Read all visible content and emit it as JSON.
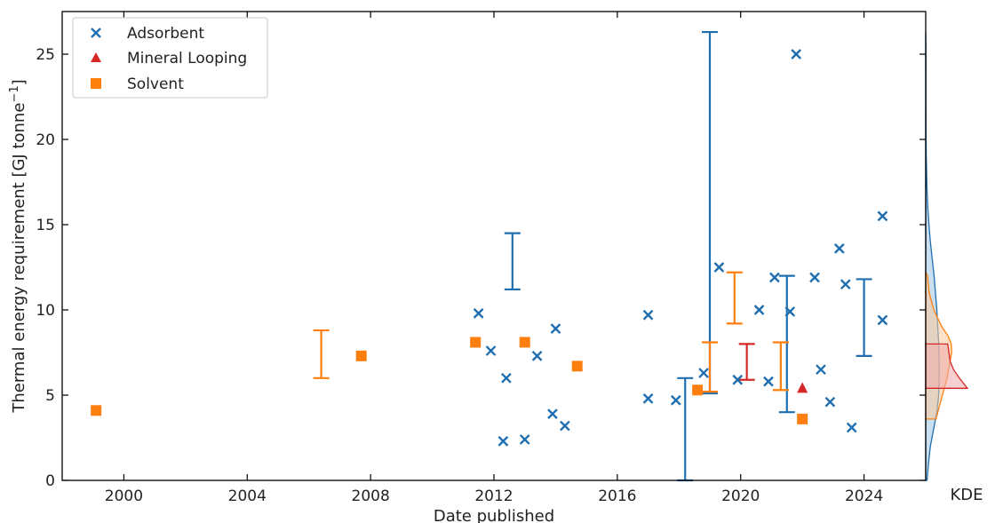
{
  "chart_data": {
    "type": "scatter",
    "xlabel": "Date published",
    "ylabel": "Thermal energy requirement [GJ tonne",
    "ylabel_sup": "−1",
    "ylabel_end": "]",
    "xlim": [
      1998,
      2026
    ],
    "ylim": [
      0,
      27.5
    ],
    "xticks": [
      2000,
      2004,
      2008,
      2012,
      2016,
      2020,
      2024
    ],
    "yticks": [
      0,
      5,
      10,
      15,
      20,
      25
    ],
    "grid": false,
    "legend_position": "top-left",
    "kde_label": "KDE",
    "series": [
      {
        "name": "Adsorbent",
        "marker": "x",
        "color": "#1f6fb0",
        "points": [
          [
            2011.5,
            9.8
          ],
          [
            2011.9,
            7.6
          ],
          [
            2012.3,
            2.3
          ],
          [
            2012.4,
            6.0
          ],
          [
            2013.0,
            2.4
          ],
          [
            2013.4,
            7.3
          ],
          [
            2013.9,
            3.9
          ],
          [
            2014.0,
            8.9
          ],
          [
            2014.3,
            3.2
          ],
          [
            2017.0,
            9.7
          ],
          [
            2017.0,
            4.8
          ],
          [
            2017.9,
            4.7
          ],
          [
            2018.8,
            6.3
          ],
          [
            2019.3,
            12.5
          ],
          [
            2019.9,
            5.9
          ],
          [
            2020.6,
            10.0
          ],
          [
            2020.9,
            5.8
          ],
          [
            2021.1,
            11.9
          ],
          [
            2021.6,
            9.9
          ],
          [
            2021.8,
            25.0
          ],
          [
            2022.4,
            11.9
          ],
          [
            2022.6,
            6.5
          ],
          [
            2022.9,
            4.6
          ],
          [
            2023.2,
            13.6
          ],
          [
            2023.4,
            11.5
          ],
          [
            2023.6,
            3.1
          ],
          [
            2024.6,
            15.5
          ],
          [
            2024.6,
            9.4
          ]
        ],
        "error_bars": [
          {
            "x": 2012.6,
            "low": 11.2,
            "high": 14.5
          },
          {
            "x": 2018.2,
            "low": 0.0,
            "high": 6.0
          },
          {
            "x": 2019.0,
            "low": 5.1,
            "high": 26.3
          },
          {
            "x": 2021.5,
            "low": 4.0,
            "high": 12.0
          },
          {
            "x": 2024.0,
            "low": 7.3,
            "high": 11.8
          }
        ]
      },
      {
        "name": "Mineral Looping",
        "marker": "triangle",
        "color": "#d62728",
        "points": [
          [
            2022.0,
            5.4
          ]
        ],
        "error_bars": [
          {
            "x": 2020.2,
            "low": 5.9,
            "high": 8.0
          }
        ]
      },
      {
        "name": "Solvent",
        "marker": "square",
        "color": "#ff7f0e",
        "points": [
          [
            1999.1,
            4.1
          ],
          [
            2007.7,
            7.3
          ],
          [
            2011.4,
            8.1
          ],
          [
            2013.0,
            8.1
          ],
          [
            2014.7,
            6.7
          ],
          [
            2018.6,
            5.3
          ],
          [
            2022.0,
            3.6
          ]
        ],
        "error_bars": [
          {
            "x": 2006.4,
            "low": 6.0,
            "high": 8.8
          },
          {
            "x": 2019.0,
            "low": 5.2,
            "high": 8.1
          },
          {
            "x": 2019.8,
            "low": 9.2,
            "high": 12.2
          },
          {
            "x": 2021.3,
            "low": 5.3,
            "high": 8.1
          }
        ]
      }
    ],
    "kde": [
      {
        "series": "Adsorbent",
        "color": "#1f6fb0",
        "fill": "#9ec5e3",
        "range": [
          0,
          26.3
        ],
        "density": [
          [
            0,
            0.06
          ],
          [
            1,
            0.12
          ],
          [
            2,
            0.2
          ],
          [
            3,
            0.34
          ],
          [
            4,
            0.48
          ],
          [
            5,
            0.56
          ],
          [
            6,
            0.58
          ],
          [
            7,
            0.58
          ],
          [
            8,
            0.56
          ],
          [
            9,
            0.52
          ],
          [
            10,
            0.48
          ],
          [
            11,
            0.42
          ],
          [
            12,
            0.36
          ],
          [
            13,
            0.28
          ],
          [
            14,
            0.2
          ],
          [
            15,
            0.14
          ],
          [
            16,
            0.09
          ],
          [
            17,
            0.06
          ],
          [
            18,
            0.04
          ],
          [
            19,
            0.025
          ],
          [
            20,
            0.015
          ],
          [
            22,
            0.01
          ],
          [
            24,
            0.01
          ],
          [
            25,
            0.012
          ],
          [
            26.3,
            0.0
          ]
        ]
      },
      {
        "series": "Solvent",
        "color": "#ff7f0e",
        "fill": "#fbc89a",
        "range": [
          3.6,
          12.2
        ],
        "density": [
          [
            3.6,
            0.45
          ],
          [
            4,
            0.52
          ],
          [
            5,
            0.72
          ],
          [
            6,
            0.92
          ],
          [
            7,
            1.05
          ],
          [
            7.5,
            1.12
          ],
          [
            8,
            1.1
          ],
          [
            8.5,
            0.95
          ],
          [
            9,
            0.7
          ],
          [
            10,
            0.35
          ],
          [
            11,
            0.15
          ],
          [
            12,
            0.08
          ],
          [
            12.2,
            0.0
          ]
        ]
      },
      {
        "series": "Mineral Looping",
        "color": "#d62728",
        "fill": "#eea9a9",
        "range": [
          5.4,
          8.0
        ],
        "density": [
          [
            5.4,
            1.8
          ],
          [
            6,
            1.45
          ],
          [
            6.5,
            1.2
          ],
          [
            7,
            1.05
          ],
          [
            7.5,
            1.0
          ],
          [
            8,
            0.95
          ]
        ]
      }
    ]
  }
}
